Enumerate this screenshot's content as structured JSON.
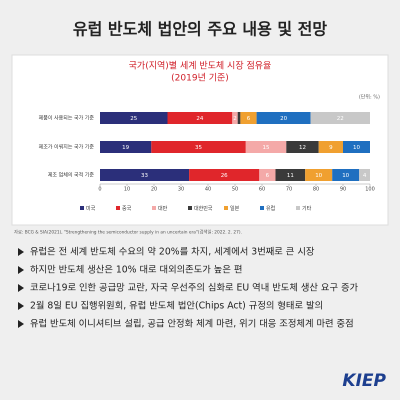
{
  "header": {
    "title": "유럽 반도체 법안의 주요 내용 및 전망"
  },
  "chart_data": {
    "type": "stacked_barh",
    "title": "국가(지역)별 세계 반도체 시장 점유율",
    "subtitle": "(2019년 기준)",
    "unit": "(단위: %)",
    "categories": [
      "제품이 사용되는 국가 기준",
      "제조가 이뤄지는 국가 기준",
      "제조 업체의 국적 기준"
    ],
    "series": [
      {
        "name": "미국",
        "color": "#2b2f7a",
        "values": [
          25,
          19,
          33
        ]
      },
      {
        "name": "중국",
        "color": "#e0262b",
        "values": [
          24,
          35,
          26
        ]
      },
      {
        "name": "대만",
        "color": "#f4a9a8",
        "values": [
          2,
          15,
          6
        ]
      },
      {
        "name": "대한민국",
        "color": "#3a3a3a",
        "values": [
          1,
          12,
          11
        ]
      },
      {
        "name": "일본",
        "color": "#f0a030",
        "values": [
          6,
          9,
          10
        ]
      },
      {
        "name": "유럽",
        "color": "#1f6fc0",
        "values": [
          20,
          10,
          10
        ]
      },
      {
        "name": "기타",
        "color": "#c8c8c8",
        "values": [
          22,
          0,
          4
        ]
      }
    ],
    "xlim": [
      0,
      100
    ],
    "xticks": [
      0,
      10,
      20,
      30,
      40,
      50,
      60,
      70,
      80,
      90,
      100
    ],
    "legend": "bottom"
  },
  "source": "자료: BCG & SIA(2021), \"Strengthening the semiconductor supply in an uncertain era\"(검색일: 2022. 2. 27).",
  "bullets": [
    "유럽은 전 세계 반도체 수요의 약 20%를 차지, 세계에서 3번째로 큰 시장",
    "하지만 반도체 생산은 10% 대로 대외의존도가 높은 편",
    "코로나19로 인한 공급망 교란, 자국 우선주의 심화로 EU 역내 반도체 생산 요구 증가",
    "2월 8일 EU 집행위원회, 유럽 반도체 법안(Chips Act) 규정의 형태로 발의",
    "유럽 반도체 이니셔티브 설립, 공급 안정화 체계 마련, 위기 대응 조정체계 마련 중점"
  ],
  "logo": "KIEP"
}
